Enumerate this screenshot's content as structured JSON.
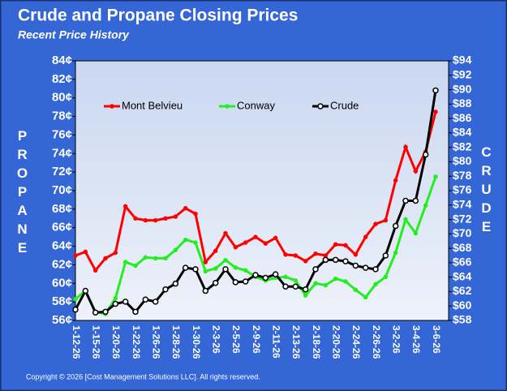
{
  "chart_data": {
    "type": "line",
    "title": "Crude and Propane Closing Prices",
    "subtitle": "Recent Price History",
    "y_label": "PROPANE",
    "y2_label": "CRUDE",
    "footnote": "Copyright © 2026 [Cost Management Solutions LLC].  All rights reserved.",
    "categories": [
      "1-12-26",
      null,
      "1-15-26",
      null,
      "1-20-26",
      null,
      "1-22-26",
      null,
      "1-26-26",
      null,
      "1-28-26",
      null,
      "1-30-26",
      null,
      "2-3-26",
      null,
      "2-5-26",
      null,
      "2-9-26",
      null,
      "2-11-26",
      null,
      "2-13-26",
      null,
      "2-18-26",
      null,
      "2-20-26",
      null,
      "2-24-26",
      null,
      "2-26-26",
      null,
      "3-2-26",
      null,
      "3-4-26",
      null,
      "3-6-26"
    ],
    "series": [
      {
        "name": "Mont Belvieu",
        "color": "#ff0000",
        "values": [
          63.0,
          63.4,
          61.4,
          62.7,
          63.3,
          68.3,
          67.0,
          66.8,
          66.8,
          67.0,
          67.2,
          68.1,
          67.5,
          62.3,
          63.5,
          65.4,
          63.9,
          64.4,
          65.0,
          64.3,
          64.9,
          63.1,
          63.0,
          62.4,
          63.2,
          63.0,
          64.2,
          64.1,
          63.1,
          65.0,
          66.4,
          66.8,
          71.1,
          74.7,
          72.1,
          74.2,
          78.5
        ]
      },
      {
        "name": "Conway",
        "color": "#22ee22",
        "values": [
          58.3,
          59.2,
          56.9,
          56.7,
          58.4,
          62.3,
          61.9,
          62.8,
          62.7,
          62.7,
          63.6,
          64.7,
          64.4,
          61.3,
          61.6,
          62.5,
          61.7,
          61.4,
          60.7,
          60.3,
          60.6,
          60.7,
          60.3,
          58.7,
          60.0,
          59.8,
          60.5,
          60.2,
          59.3,
          58.5,
          59.9,
          60.7,
          63.3,
          66.9,
          65.4,
          68.4,
          71.5
        ]
      },
      {
        "name": "Crude",
        "color": "#000000",
        "axis": "y2",
        "values": [
          59.5,
          62.1,
          59.1,
          59.2,
          60.3,
          60.6,
          59.2,
          60.9,
          60.6,
          62.3,
          63.1,
          65.3,
          65.1,
          62.1,
          63.2,
          65.1,
          63.3,
          63.4,
          64.3,
          63.9,
          64.4,
          62.7,
          62.7,
          62.3,
          65.1,
          66.4,
          66.4,
          66.2,
          65.6,
          65.3,
          65.1,
          67.0,
          71.1,
          74.6,
          74.6,
          81.0,
          89.9
        ]
      }
    ],
    "ylim": [
      56,
      84
    ],
    "yticks": [
      {
        "value": 56,
        "label": "56¢"
      },
      {
        "value": 58,
        "label": "58¢"
      },
      {
        "value": 60,
        "label": "60¢"
      },
      {
        "value": 62,
        "label": "62¢"
      },
      {
        "value": 64,
        "label": "64¢"
      },
      {
        "value": 66,
        "label": "66¢"
      },
      {
        "value": 68,
        "label": "68¢"
      },
      {
        "value": 70,
        "label": "70¢"
      },
      {
        "value": 72,
        "label": "72¢"
      },
      {
        "value": 74,
        "label": "74¢"
      },
      {
        "value": 76,
        "label": "76¢"
      },
      {
        "value": 78,
        "label": "78¢"
      },
      {
        "value": 80,
        "label": "80¢"
      },
      {
        "value": 82,
        "label": "82¢"
      },
      {
        "value": 84,
        "label": "84¢"
      }
    ],
    "y2lim": [
      58,
      94
    ],
    "y2ticks": [
      {
        "value": 58,
        "label": "$58"
      },
      {
        "value": 60,
        "label": "$60"
      },
      {
        "value": 62,
        "label": "$62"
      },
      {
        "value": 64,
        "label": "$64"
      },
      {
        "value": 66,
        "label": "$66"
      },
      {
        "value": 68,
        "label": "$68"
      },
      {
        "value": 70,
        "label": "$70"
      },
      {
        "value": 72,
        "label": "$72"
      },
      {
        "value": 74,
        "label": "$74"
      },
      {
        "value": 76,
        "label": "$76"
      },
      {
        "value": 78,
        "label": "$78"
      },
      {
        "value": 80,
        "label": "$80"
      },
      {
        "value": 82,
        "label": "$82"
      },
      {
        "value": 84,
        "label": "$84"
      },
      {
        "value": 86,
        "label": "$86"
      },
      {
        "value": 88,
        "label": "$88"
      },
      {
        "value": 90,
        "label": "$90"
      },
      {
        "value": 92,
        "label": "$92"
      },
      {
        "value": 94,
        "label": "$94"
      }
    ],
    "legend": "top"
  }
}
